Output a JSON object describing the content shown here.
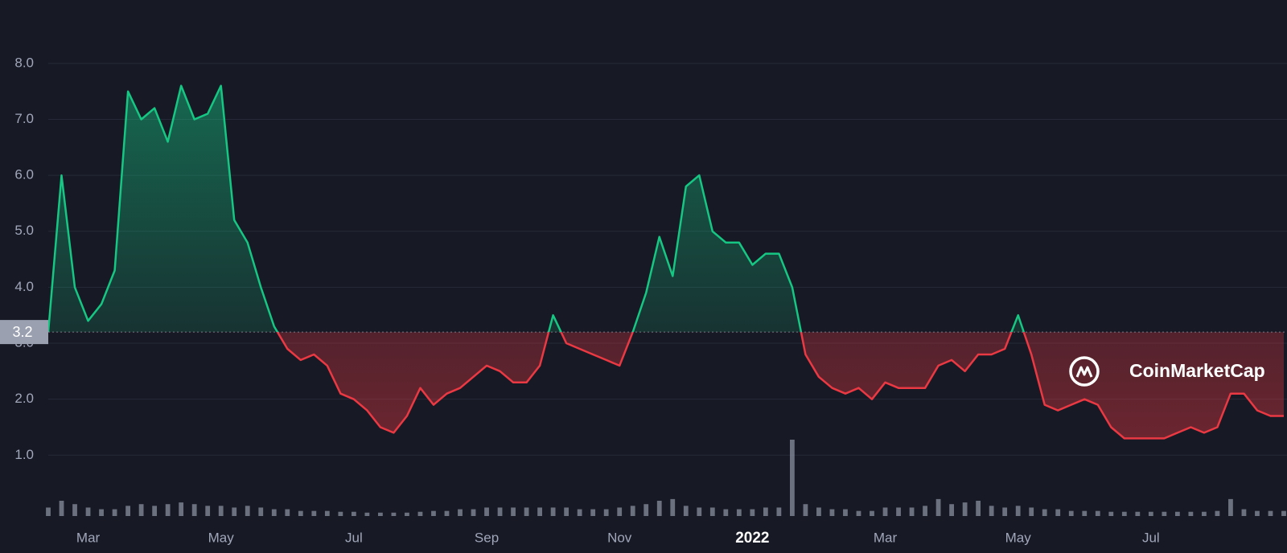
{
  "chart_data": {
    "type": "line",
    "categories": [
      null,
      null,
      null,
      "Mar",
      null,
      null,
      null,
      null,
      null,
      null,
      null,
      null,
      null,
      "May",
      null,
      null,
      null,
      null,
      null,
      null,
      null,
      null,
      null,
      "Jul",
      null,
      null,
      null,
      null,
      null,
      null,
      null,
      null,
      null,
      "Sep",
      null,
      null,
      null,
      null,
      null,
      null,
      null,
      null,
      null,
      "Nov",
      null,
      null,
      null,
      null,
      null,
      null,
      null,
      null,
      null,
      "2022",
      null,
      null,
      null,
      null,
      null,
      null,
      null,
      null,
      null,
      "Mar",
      null,
      null,
      null,
      null,
      null,
      null,
      null,
      null,
      null,
      "May",
      null,
      null,
      null,
      null,
      null,
      null,
      null,
      null,
      null,
      "Jul",
      null,
      null,
      null,
      null,
      null,
      null,
      null,
      null,
      null,
      null
    ],
    "values": [
      3.2,
      6.0,
      4.0,
      3.4,
      3.7,
      4.3,
      7.5,
      7.0,
      7.2,
      6.6,
      7.6,
      7.0,
      7.1,
      7.6,
      5.2,
      4.8,
      4.0,
      3.3,
      2.9,
      2.7,
      2.8,
      2.6,
      2.1,
      2.0,
      1.8,
      1.5,
      1.4,
      1.7,
      2.2,
      1.9,
      2.1,
      2.2,
      2.4,
      2.6,
      2.5,
      2.3,
      2.3,
      2.6,
      3.5,
      3.0,
      2.9,
      2.8,
      2.7,
      2.6,
      3.2,
      3.9,
      4.9,
      4.2,
      5.8,
      6.0,
      5.0,
      4.8,
      4.8,
      4.4,
      4.6,
      4.6,
      4.0,
      2.8,
      2.4,
      2.2,
      2.1,
      2.2,
      2.0,
      2.3,
      2.2,
      2.2,
      2.2,
      2.6,
      2.7,
      2.5,
      2.8,
      2.8,
      2.9,
      3.5,
      2.8,
      1.9,
      1.8,
      1.9,
      2.0,
      1.9,
      1.5,
      1.3,
      1.3,
      1.3,
      1.3,
      1.4,
      1.5,
      1.4,
      1.5,
      2.1,
      2.1,
      1.8,
      1.7,
      1.7
    ],
    "volume": [
      10,
      18,
      14,
      10,
      8,
      8,
      12,
      14,
      12,
      14,
      16,
      14,
      12,
      12,
      10,
      12,
      10,
      8,
      8,
      6,
      6,
      6,
      5,
      5,
      4,
      4,
      4,
      4,
      5,
      6,
      6,
      8,
      8,
      10,
      10,
      10,
      10,
      10,
      10,
      10,
      8,
      8,
      8,
      10,
      12,
      14,
      18,
      20,
      12,
      10,
      10,
      8,
      8,
      8,
      10,
      10,
      90,
      14,
      10,
      8,
      8,
      6,
      6,
      10,
      10,
      10,
      12,
      20,
      14,
      16,
      18,
      12,
      10,
      12,
      10,
      8,
      8,
      6,
      6,
      6,
      5,
      5,
      5,
      5,
      5,
      5,
      5,
      5,
      6,
      20,
      8,
      6,
      6,
      6
    ],
    "baseline": 3.2,
    "up_color": "#16c784",
    "down_color": "#ea3943",
    "ylim": [
      0.2,
      8.4
    ],
    "yticks": [
      {
        "value": 1,
        "label": "1.0"
      },
      {
        "value": 2,
        "label": "2.0"
      },
      {
        "value": 3,
        "label": "3.0"
      },
      {
        "value": 4,
        "label": "4.0"
      },
      {
        "value": 5,
        "label": "5.0"
      },
      {
        "value": 6,
        "label": "6.0"
      },
      {
        "value": 7,
        "label": "7.0"
      },
      {
        "value": 8,
        "label": "8.0"
      }
    ],
    "grid": true,
    "watermark": "CoinMarketCap"
  }
}
